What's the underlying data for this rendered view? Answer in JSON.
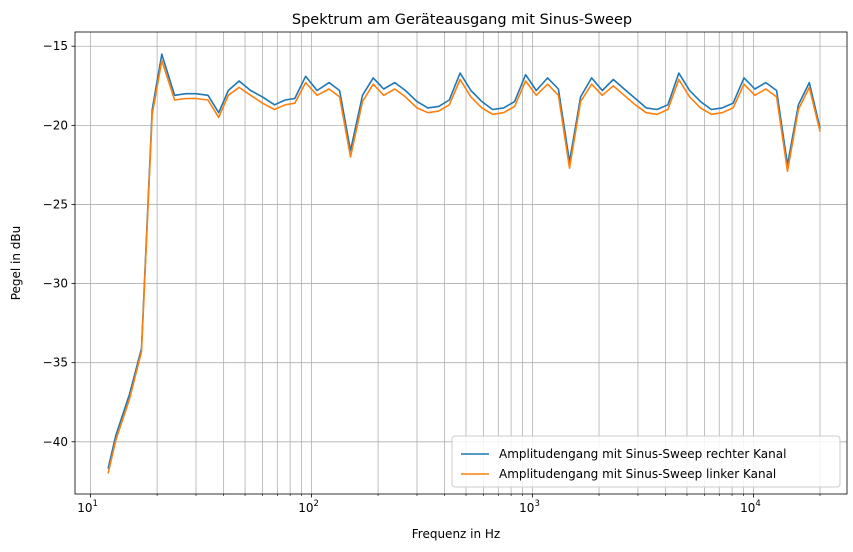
{
  "chart_data": {
    "type": "line",
    "title": "Spektrum am Geräteausgang mit Sinus-Sweep",
    "xlabel": "Frequenz in Hz",
    "ylabel": "Pegel in dBu",
    "xscale": "log",
    "xlim": [
      8.5,
      26500
    ],
    "ylim": [
      -43.3,
      -14.1
    ],
    "xticks": [
      {
        "value": 10,
        "base": "10",
        "exp": "1"
      },
      {
        "value": 100,
        "base": "10",
        "exp": "2"
      },
      {
        "value": 1000,
        "base": "10",
        "exp": "3"
      },
      {
        "value": 10000,
        "base": "10",
        "exp": "4"
      }
    ],
    "yticks": [
      {
        "value": -15,
        "label": "−15"
      },
      {
        "value": -20,
        "label": "−20"
      },
      {
        "value": -25,
        "label": "−25"
      },
      {
        "value": -30,
        "label": "−30"
      },
      {
        "value": -35,
        "label": "−35"
      },
      {
        "value": -40,
        "label": "−40"
      }
    ],
    "grid": true,
    "legend_position": "lower-right",
    "x": [
      12,
      13,
      15,
      17,
      19,
      21,
      24,
      27,
      30,
      34,
      38,
      42,
      47,
      53,
      60,
      68,
      76,
      84,
      94,
      106,
      120,
      134,
      150,
      170,
      190,
      212,
      238,
      266,
      300,
      336,
      376,
      420,
      470,
      526,
      590,
      660,
      740,
      830,
      930,
      1040,
      1170,
      1310,
      1470,
      1650,
      1850,
      2070,
      2320,
      2600,
      2920,
      3270,
      3660,
      4100,
      4590,
      5140,
      5760,
      6450,
      7220,
      8090,
      9060,
      10150,
      11370,
      12730,
      14260,
      15970,
      17890,
      20030
    ],
    "series": [
      {
        "name": "Amplitudengang mit Sinus-Sweep rechter Kanal",
        "color": "#1f77b4",
        "values": [
          -41.7,
          -39.6,
          -37.0,
          -34.1,
          -19.0,
          -15.5,
          -18.1,
          -18.0,
          -18.0,
          -18.1,
          -19.2,
          -17.8,
          -17.2,
          -17.8,
          -18.2,
          -18.7,
          -18.4,
          -18.3,
          -16.9,
          -17.8,
          -17.3,
          -17.8,
          -21.6,
          -18.1,
          -17.0,
          -17.7,
          -17.3,
          -17.8,
          -18.5,
          -18.9,
          -18.8,
          -18.4,
          -16.7,
          -17.8,
          -18.5,
          -19.0,
          -18.9,
          -18.5,
          -16.8,
          -17.8,
          -17.0,
          -17.7,
          -22.3,
          -18.2,
          -17.0,
          -17.8,
          -17.1,
          -17.7,
          -18.3,
          -18.9,
          -19.0,
          -18.7,
          -16.7,
          -17.8,
          -18.5,
          -19.0,
          -18.9,
          -18.6,
          -17.0,
          -17.7,
          -17.3,
          -17.8,
          -22.5,
          -18.7,
          -17.3,
          -20.2
        ]
      },
      {
        "name": "Amplitudengang mit Sinus-Sweep linker Kanal",
        "color": "#ff7f0e",
        "values": [
          -42.0,
          -39.9,
          -37.3,
          -34.3,
          -19.3,
          -15.9,
          -18.4,
          -18.3,
          -18.3,
          -18.4,
          -19.5,
          -18.1,
          -17.6,
          -18.1,
          -18.6,
          -19.0,
          -18.7,
          -18.6,
          -17.3,
          -18.1,
          -17.7,
          -18.2,
          -22.0,
          -18.5,
          -17.4,
          -18.1,
          -17.7,
          -18.2,
          -18.9,
          -19.2,
          -19.1,
          -18.7,
          -17.1,
          -18.2,
          -18.9,
          -19.3,
          -19.2,
          -18.8,
          -17.2,
          -18.1,
          -17.4,
          -18.1,
          -22.7,
          -18.5,
          -17.4,
          -18.1,
          -17.5,
          -18.1,
          -18.7,
          -19.2,
          -19.3,
          -19.0,
          -17.1,
          -18.2,
          -18.9,
          -19.3,
          -19.2,
          -18.9,
          -17.4,
          -18.1,
          -17.7,
          -18.2,
          -22.9,
          -19.0,
          -17.6,
          -20.4
        ]
      }
    ]
  }
}
